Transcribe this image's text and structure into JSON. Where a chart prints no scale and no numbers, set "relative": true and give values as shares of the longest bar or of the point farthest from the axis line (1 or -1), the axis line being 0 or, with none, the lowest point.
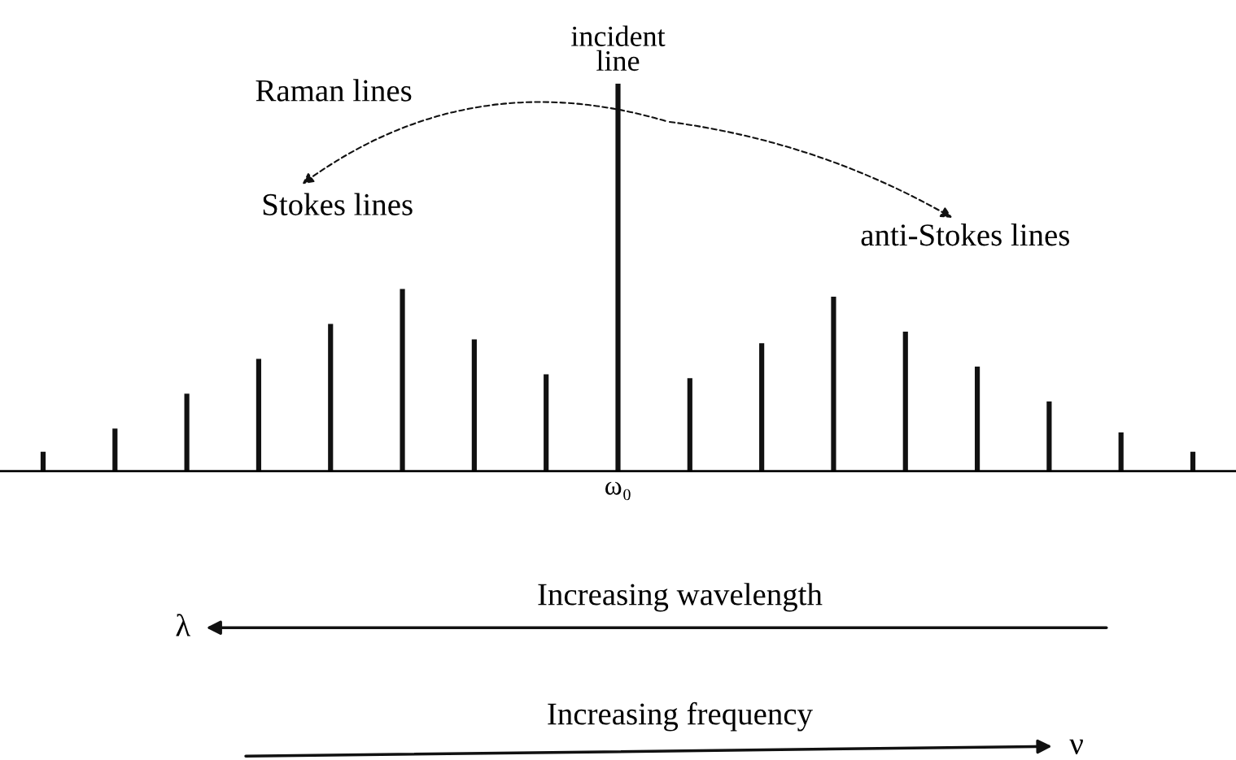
{
  "chart_data": {
    "type": "bar",
    "relative": true,
    "categories": [
      null,
      null,
      null,
      null,
      null,
      null,
      null,
      null,
      "ω₀",
      null,
      null,
      null,
      null,
      null,
      null,
      null,
      null
    ],
    "values": [
      0.05,
      0.11,
      0.2,
      0.29,
      0.38,
      0.47,
      0.34,
      0.25,
      1,
      0.24,
      0.33,
      0.45,
      0.36,
      0.27,
      0.18,
      0.1,
      0.05
    ],
    "color": "#111111",
    "annotations": [
      {
        "text": "incident\nline",
        "x": "ω₀",
        "y": 1
      },
      "Raman lines",
      "Stokes lines",
      "anti-Stokes lines",
      "Increasing wavelength",
      "λ",
      "Increasing frequency",
      "ν"
    ],
    "grid": false,
    "legend": false
  }
}
